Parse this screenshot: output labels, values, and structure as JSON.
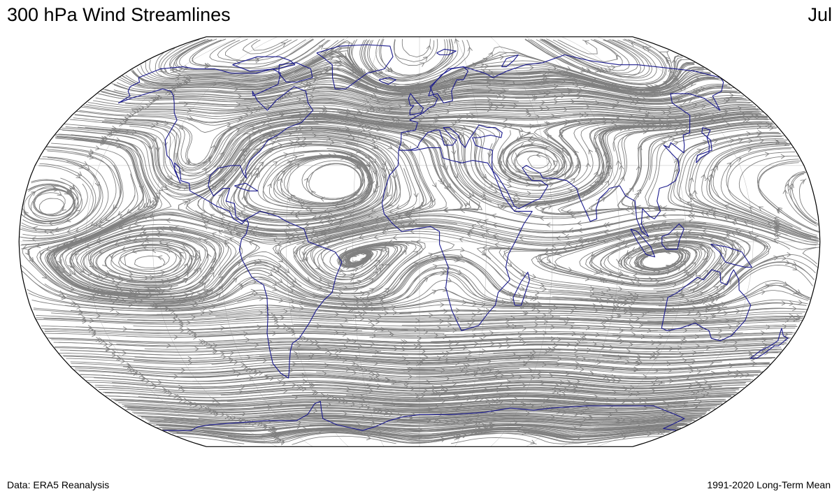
{
  "title": "300 hPa Wind Streamlines",
  "month": "Jul",
  "footer": {
    "source": "Data: ERA5 Reanalysis",
    "period": "1991-2020 Long-Term Mean"
  },
  "map": {
    "projection": "robinson",
    "field": "streamlines",
    "level": "300 hPa",
    "coastline_color": "#1a1a8c",
    "streamline_color": "#808080",
    "graticule_color": "#bbbbbb",
    "frame_color": "#000000",
    "background": "#ffffff"
  }
}
